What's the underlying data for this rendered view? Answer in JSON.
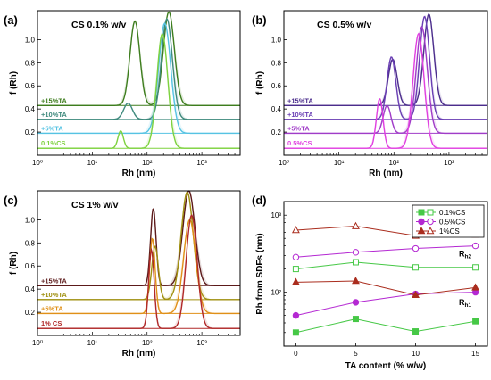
{
  "chart_data": [
    {
      "panel": "(a)",
      "type": "line",
      "title": "CS 0.1% w/v",
      "xlabel": "Rh (nm)",
      "ylabel": "f (Rh)",
      "xscale": "log",
      "xlim": [
        1,
        5000
      ],
      "ylim": [
        0,
        1.25
      ],
      "yticks": [
        0.2,
        0.4,
        0.6,
        0.8,
        1.0
      ],
      "xticks": [
        {
          "v": 1,
          "label": "10⁰"
        },
        {
          "v": 10,
          "label": "10¹"
        },
        {
          "v": 100,
          "label": "10²"
        },
        {
          "v": 1000,
          "label": "10³"
        }
      ],
      "series": [
        {
          "name": "+15%TA",
          "color": "#3e7d1e",
          "offset": 0.43,
          "peaks": [
            [
              60,
              0.73,
              0.09
            ],
            [
              250,
              0.81,
              0.1
            ]
          ]
        },
        {
          "name": "+10%TA",
          "color": "#3f8a7d",
          "offset": 0.31,
          "peaks": [
            [
              45,
              0.14,
              0.08
            ],
            [
              230,
              0.87,
              0.1
            ]
          ]
        },
        {
          "name": "+5%TA",
          "color": "#56c3e3",
          "offset": 0.19,
          "peaks": [
            [
              210,
              0.95,
              0.11
            ]
          ]
        },
        {
          "name": "0.1%CS",
          "color": "#7ed23f",
          "offset": 0.06,
          "peaks": [
            [
              33,
              0.15,
              0.05
            ],
            [
              190,
              0.99,
              0.1
            ]
          ]
        }
      ]
    },
    {
      "panel": "(b)",
      "type": "line",
      "title": "CS 0.5% w/v",
      "xlabel": "Rh (nm)",
      "ylabel": "f (Rh)",
      "xscale": "log",
      "xlim": [
        1,
        5000
      ],
      "ylim": [
        0,
        1.25
      ],
      "yticks": [
        0.2,
        0.4,
        0.6,
        0.8,
        1.0
      ],
      "xticks": [
        {
          "v": 1,
          "label": "10⁰"
        },
        {
          "v": 10,
          "label": "10¹"
        },
        {
          "v": 100,
          "label": "10²"
        },
        {
          "v": 1000,
          "label": "10³"
        }
      ],
      "series": [
        {
          "name": "+15%TA",
          "color": "#4b2d8c",
          "offset": 0.43,
          "peaks": [
            [
              95,
              0.4,
              0.08
            ],
            [
              430,
              0.79,
              0.09
            ]
          ]
        },
        {
          "name": "+10%TA",
          "color": "#6a3fb4",
          "offset": 0.31,
          "peaks": [
            [
              90,
              0.54,
              0.08
            ],
            [
              360,
              0.89,
              0.09
            ]
          ]
        },
        {
          "name": "+5%TA",
          "color": "#a03cc8",
          "offset": 0.19,
          "peaks": [
            [
              75,
              0.24,
              0.07
            ],
            [
              320,
              0.92,
              0.1
            ]
          ]
        },
        {
          "name": "0.5%CS",
          "color": "#e040e0",
          "offset": 0.06,
          "peaks": [
            [
              55,
              0.43,
              0.06
            ],
            [
              280,
              0.99,
              0.1
            ]
          ]
        }
      ]
    },
    {
      "panel": "(c)",
      "type": "line",
      "title": "CS 1% w/v",
      "xlabel": "Rh (nm)",
      "ylabel": "f (Rh)",
      "xscale": "log",
      "xlim": [
        1,
        5000
      ],
      "ylim": [
        0,
        1.25
      ],
      "yticks": [
        0.2,
        0.4,
        0.6,
        0.8,
        1.0
      ],
      "xticks": [
        {
          "v": 1,
          "label": "10⁰"
        },
        {
          "v": 10,
          "label": "10¹"
        },
        {
          "v": 100,
          "label": "10²"
        },
        {
          "v": 1000,
          "label": "10³"
        }
      ],
      "series": [
        {
          "name": "+15%TA",
          "color": "#5c1a1a",
          "offset": 0.43,
          "peaks": [
            [
              130,
              0.67,
              0.05
            ],
            [
              580,
              0.82,
              0.11
            ]
          ]
        },
        {
          "name": "+10%TA",
          "color": "#a09010",
          "offset": 0.31,
          "peaks": [
            [
              140,
              0.46,
              0.06
            ],
            [
              540,
              0.93,
              0.11
            ]
          ]
        },
        {
          "name": "+5%TA",
          "color": "#e09018",
          "offset": 0.19,
          "peaks": [
            [
              125,
              0.65,
              0.05
            ],
            [
              600,
              0.81,
              0.11
            ]
          ]
        },
        {
          "name": "1% CS",
          "color": "#b02828",
          "offset": 0.06,
          "peaks": [
            [
              120,
              0.68,
              0.05
            ],
            [
              650,
              0.98,
              0.1
            ]
          ]
        }
      ]
    },
    {
      "panel": "(d)",
      "type": "scatter",
      "xlabel": "TA content (% w/w)",
      "ylabel": "Rh from SDFs (nm)",
      "yscale": "log",
      "xlim": [
        -1,
        16
      ],
      "ylim": [
        20,
        1500
      ],
      "x": [
        0,
        5,
        10,
        15
      ],
      "xticks": [
        0,
        5,
        10,
        15
      ],
      "yticks": [
        {
          "v": 100,
          "label": "10²"
        },
        {
          "v": 1000,
          "label": "10³"
        }
      ],
      "annotations": [
        "Rh2",
        "Rh1"
      ],
      "legend_position": "top-right",
      "series": [
        {
          "name": "0.1%CS",
          "marker": "square",
          "color": "#46c846",
          "rh1": [
            30,
            45,
            31,
            42
          ],
          "rh2": [
            200,
            245,
            210,
            210
          ]
        },
        {
          "name": "0.5%CS",
          "marker": "circle",
          "color": "#b428d2",
          "rh1": [
            50,
            74,
            95,
            100
          ],
          "rh2": [
            285,
            330,
            370,
            400
          ]
        },
        {
          "name": "1%CS",
          "marker": "triangle",
          "color": "#aa2d1e",
          "rh1": [
            135,
            140,
            92,
            115
          ],
          "rh2": [
            640,
            720,
            540,
            560
          ]
        }
      ]
    }
  ]
}
